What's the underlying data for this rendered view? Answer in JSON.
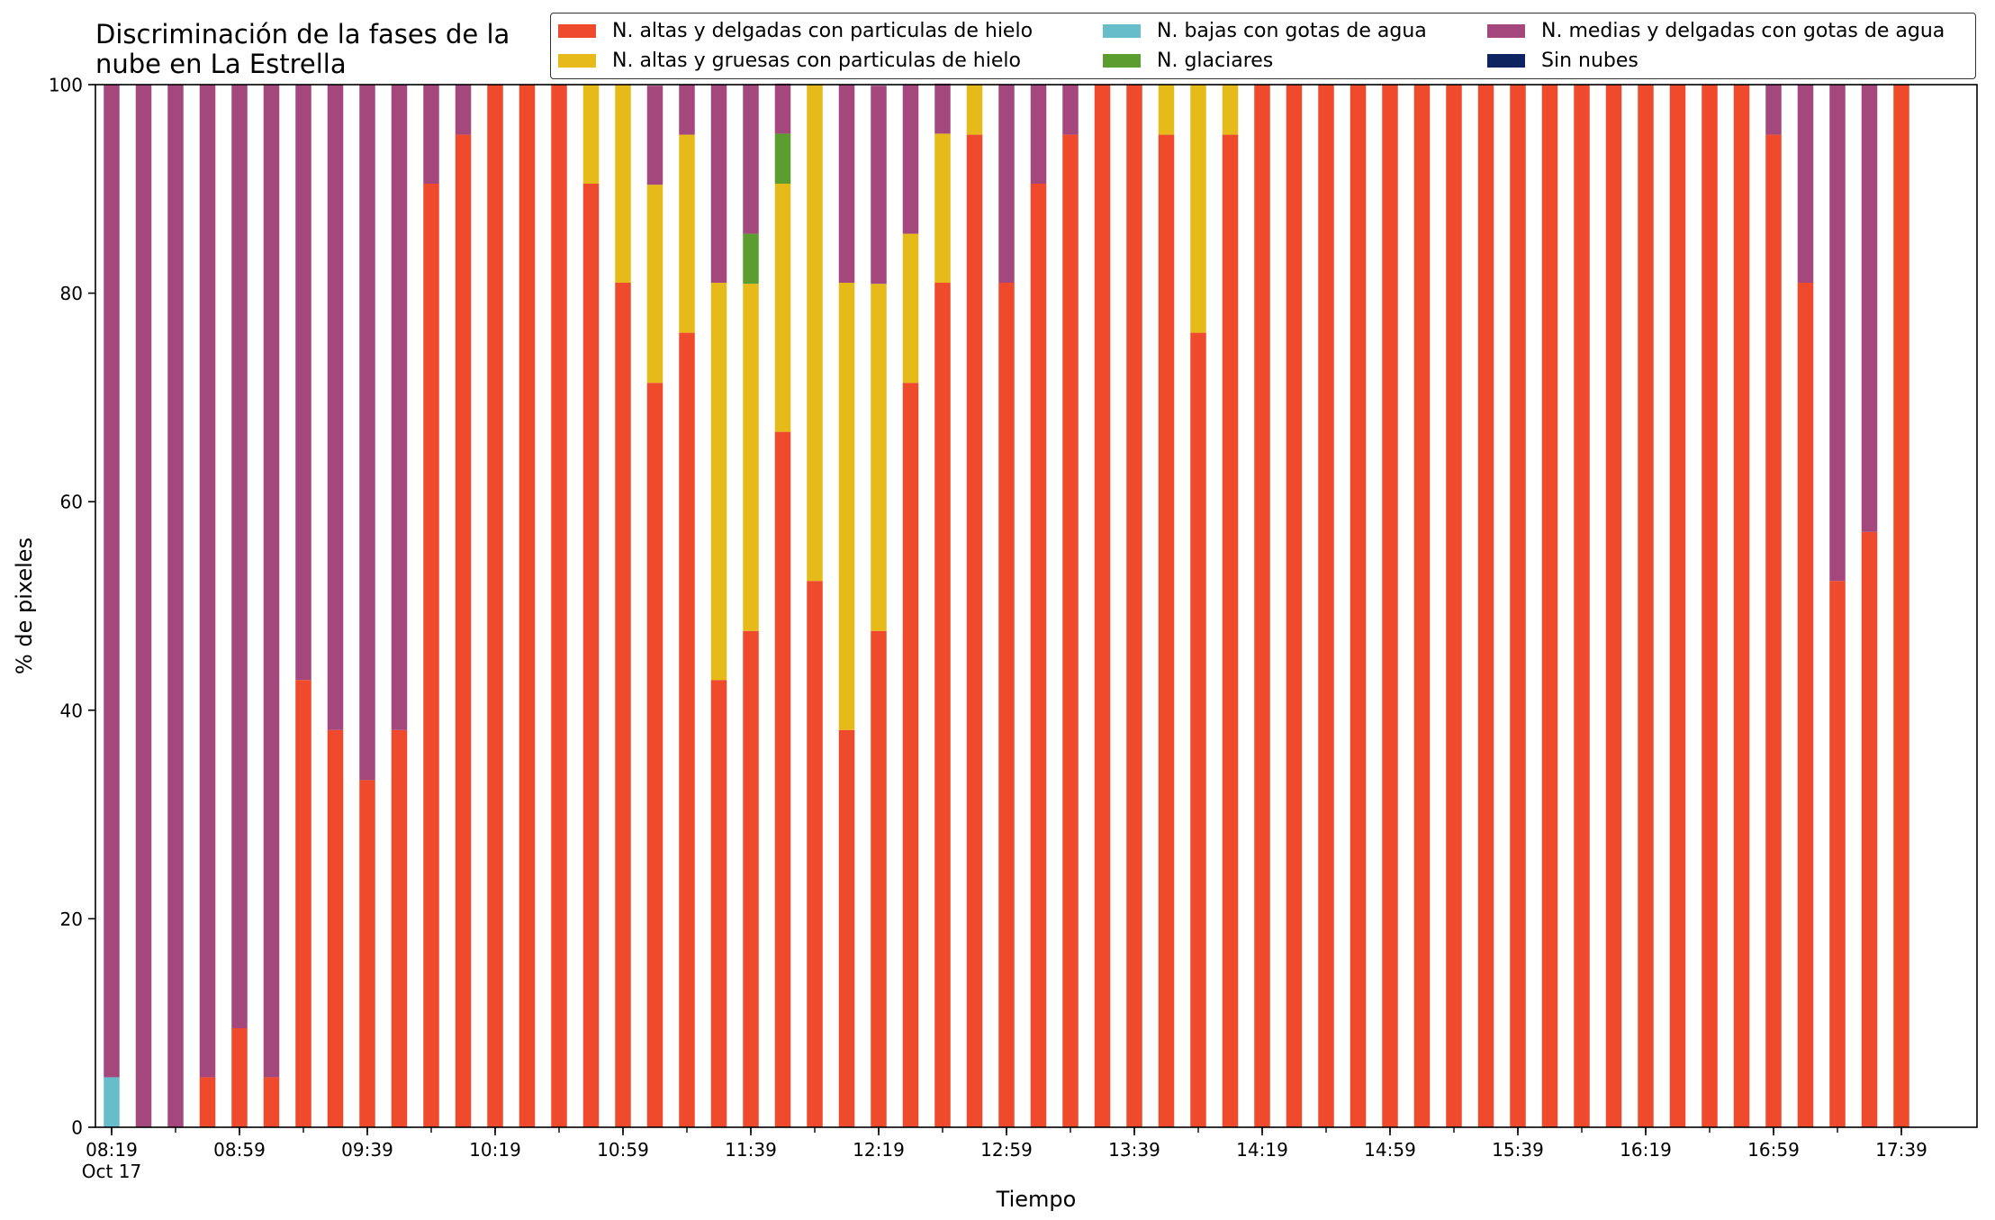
{
  "chart_data": {
    "type": "bar",
    "stacked": true,
    "title": "Discriminación de la fases de la nube en La Estrella",
    "title_lines": [
      "Discriminación de la fases de la",
      "nube en La Estrella"
    ],
    "xlabel": "Tiempo",
    "ylabel": "% de pixeles",
    "ylim": [
      0,
      100
    ],
    "yticks": [
      0,
      20,
      40,
      60,
      80,
      100
    ],
    "x_date_label": "Oct 17",
    "xtick_labels": [
      "08:19",
      "08:59",
      "09:39",
      "10:19",
      "10:59",
      "11:39",
      "12:19",
      "12:59",
      "13:39",
      "14:19",
      "14:59",
      "15:39",
      "16:19",
      "16:59",
      "17:39"
    ],
    "categories": [
      "08:19",
      "08:29",
      "08:39",
      "08:49",
      "08:59",
      "09:09",
      "09:19",
      "09:29",
      "09:39",
      "09:49",
      "09:59",
      "10:09",
      "10:19",
      "10:29",
      "10:39",
      "10:49",
      "10:59",
      "11:09",
      "11:19",
      "11:29",
      "11:39",
      "11:49",
      "11:59",
      "12:09",
      "12:19",
      "12:29",
      "12:39",
      "12:49",
      "12:59",
      "13:09",
      "13:19",
      "13:29",
      "13:39",
      "13:49",
      "13:59",
      "14:09",
      "14:19",
      "14:29",
      "14:39",
      "14:49",
      "14:59",
      "15:09",
      "15:19",
      "15:29",
      "15:39",
      "15:49",
      "15:59",
      "16:09",
      "16:19",
      "16:29",
      "16:39",
      "16:49",
      "16:59",
      "17:09",
      "17:19",
      "17:29",
      "17:39",
      "17:49"
    ],
    "legend_position": "top-right",
    "grid": false,
    "series": [
      {
        "name": "N. altas y delgadas con particulas de hielo",
        "color": "#ef4a2b",
        "values": [
          0,
          0,
          0,
          4.8,
          9.5,
          4.8,
          42.9,
          38.1,
          33.3,
          38.1,
          90.5,
          95.2,
          100,
          100,
          100,
          90.5,
          81,
          71.4,
          76.2,
          42.9,
          47.6,
          66.7,
          52.4,
          38.1,
          47.6,
          71.4,
          81,
          95.2,
          81,
          90.5,
          95.2,
          100,
          100,
          95.2,
          76.2,
          95.2,
          100,
          100,
          100,
          100,
          100,
          100,
          100,
          100,
          100,
          100,
          100,
          100,
          100,
          100,
          100,
          100,
          95.2,
          81,
          52.4,
          57.1,
          100,
          0
        ]
      },
      {
        "name": "N. bajas con gotas de agua",
        "color": "#67bdc9",
        "values": [
          4.8,
          0,
          0,
          0,
          0,
          0,
          0,
          0,
          0,
          0,
          0,
          0,
          0,
          0,
          0,
          0,
          0,
          0,
          0,
          0,
          0,
          0,
          0,
          0,
          0,
          0,
          0,
          0,
          0,
          0,
          0,
          0,
          0,
          0,
          0,
          0,
          0,
          0,
          0,
          0,
          0,
          0,
          0,
          0,
          0,
          0,
          0,
          0,
          0,
          0,
          0,
          0,
          0,
          0,
          0,
          0,
          0,
          0
        ]
      },
      {
        "name": "N. medias y delgadas con gotas de agua",
        "color": "#a4477d",
        "values": [
          95.2,
          100,
          100,
          95.2,
          90.5,
          95.2,
          57.1,
          61.9,
          66.7,
          61.9,
          9.5,
          4.8,
          0,
          0,
          0,
          0,
          0,
          9.5,
          4.8,
          19,
          14.3,
          4.8,
          0,
          19,
          19,
          14.3,
          4.8,
          0,
          19,
          9.5,
          4.8,
          0,
          0,
          0,
          0,
          0,
          0,
          0,
          0,
          0,
          0,
          0,
          0,
          0,
          0,
          0,
          0,
          0,
          0,
          0,
          0,
          0,
          4.8,
          19,
          47.6,
          42.9,
          0,
          0
        ]
      },
      {
        "name": "N. altas y gruesas con particulas de hielo",
        "color": "#e5ba19",
        "values": [
          0,
          0,
          0,
          0,
          0,
          0,
          0,
          0,
          0,
          0,
          0,
          0,
          0,
          0,
          0,
          9.5,
          19,
          19,
          19,
          38.1,
          33.3,
          23.8,
          47.6,
          42.9,
          33.3,
          14.3,
          14.3,
          4.8,
          0,
          0,
          0,
          0,
          0,
          4.8,
          23.8,
          4.8,
          0,
          0,
          0,
          0,
          0,
          0,
          0,
          0,
          0,
          0,
          0,
          0,
          0,
          0,
          0,
          0,
          0,
          0,
          0,
          0,
          0,
          0
        ]
      },
      {
        "name": "N. glaciares",
        "color": "#5c9d2f",
        "values": [
          0,
          0,
          0,
          0,
          0,
          0,
          0,
          0,
          0,
          0,
          0,
          0,
          0,
          0,
          0,
          0,
          0,
          0,
          0,
          0,
          4.8,
          4.8,
          0,
          0,
          0,
          0,
          0,
          0,
          0,
          0,
          0,
          0,
          0,
          0,
          0,
          0,
          0,
          0,
          0,
          0,
          0,
          0,
          0,
          0,
          0,
          0,
          0,
          0,
          0,
          0,
          0,
          0,
          0,
          0,
          0,
          0,
          0,
          0
        ]
      },
      {
        "name": "Sin nubes",
        "color": "#0e2461",
        "values": [
          0,
          0,
          0,
          0,
          0,
          0,
          0,
          0,
          0,
          0,
          0,
          0,
          0,
          0,
          0,
          0,
          0,
          0,
          0,
          0,
          0,
          0,
          0,
          0,
          0,
          0,
          0,
          0,
          0,
          0,
          0,
          0,
          0,
          0,
          0,
          0,
          0,
          0,
          0,
          0,
          0,
          0,
          0,
          0,
          0,
          0,
          0,
          0,
          0,
          0,
          0,
          0,
          0,
          0,
          0,
          0,
          0,
          0
        ]
      }
    ],
    "stack_order": [
      "N. altas y delgadas con particulas de hielo",
      "N. bajas con gotas de agua",
      "N. altas y gruesas con particulas de hielo",
      "N. glaciares",
      "N. medias y delgadas con gotas de agua",
      "Sin nubes"
    ],
    "legend_order": [
      "N. altas y delgadas con particulas de hielo",
      "N. altas y gruesas con particulas de hielo",
      "N. bajas con gotas de agua",
      "N. glaciares",
      "N. medias y delgadas con gotas de agua",
      "Sin nubes"
    ]
  }
}
